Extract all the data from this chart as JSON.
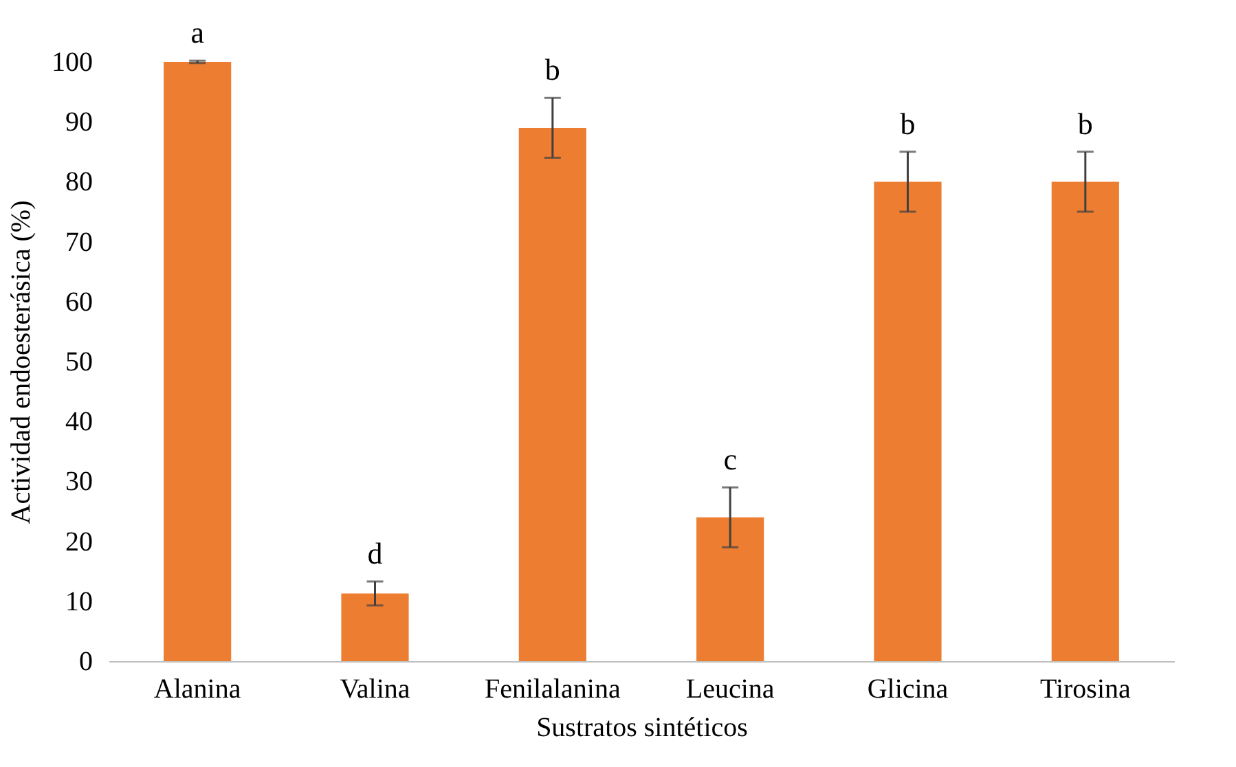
{
  "chart_data": {
    "type": "bar",
    "xlabel": "Sustratos sintéticos",
    "ylabel": "Actividad endoesterásica (%)",
    "categories": [
      "Alanina",
      "Valina",
      "Fenilalanina",
      "Leucina",
      "Glicina",
      "Tirosina"
    ],
    "values": [
      100,
      11.3,
      89,
      24,
      80,
      80
    ],
    "errors": [
      0.2,
      2,
      5,
      5,
      5,
      5
    ],
    "color": "#ed7d31",
    "ylim": [
      0,
      100
    ],
    "yticks": [
      0,
      10,
      20,
      30,
      40,
      50,
      60,
      70,
      80,
      90,
      100
    ],
    "grid": false,
    "annotations": [
      {
        "text": "a",
        "x": "Alanina",
        "y": 100.2
      },
      {
        "text": "d",
        "x": "Valina",
        "y": 13.3
      },
      {
        "text": "b",
        "x": "Fenilalanina",
        "y": 94
      },
      {
        "text": "c",
        "x": "Leucina",
        "y": 29
      },
      {
        "text": "b",
        "x": "Glicina",
        "y": 85
      },
      {
        "text": "b",
        "x": "Tirosina",
        "y": 85
      }
    ]
  }
}
